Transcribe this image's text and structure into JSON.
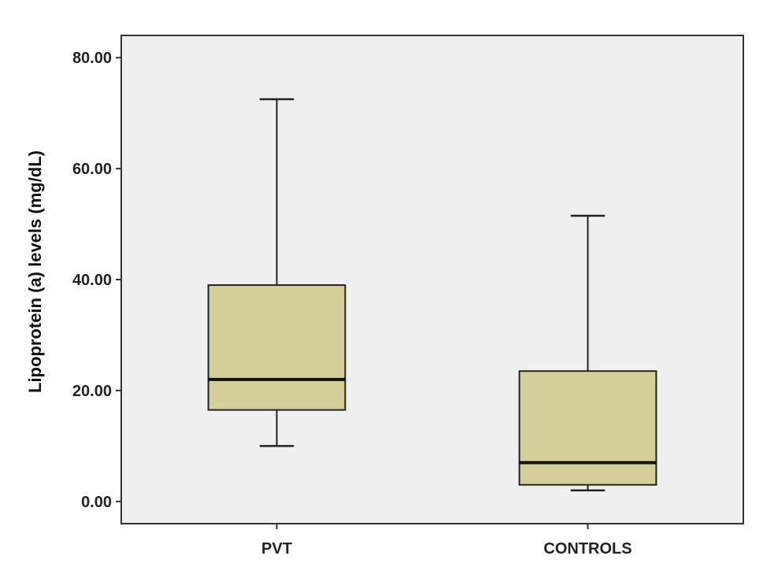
{
  "chart_data": {
    "type": "box",
    "title": "",
    "xlabel": "",
    "ylabel": "Lipoprotein (a) levels (mg/dL)",
    "ylim": [
      -4,
      84
    ],
    "yticks": [
      "0.00",
      "20.00",
      "40.00",
      "60.00",
      "80.00"
    ],
    "ytick_values": [
      0,
      20,
      40,
      60,
      80
    ],
    "grid": false,
    "categories": [
      "PVT",
      "CONTROLS"
    ],
    "boxes": [
      {
        "category": "PVT",
        "whisker_low": 10,
        "q1": 16.5,
        "median": 22,
        "q3": 39,
        "whisker_high": 72.5
      },
      {
        "category": "CONTROLS",
        "whisker_low": 2,
        "q1": 3,
        "median": 7,
        "q3": 23.5,
        "whisker_high": 51.5
      }
    ],
    "colors": {
      "plot_background": "#efefef",
      "box_fill": "#d4cf99",
      "line": "#222222"
    }
  }
}
